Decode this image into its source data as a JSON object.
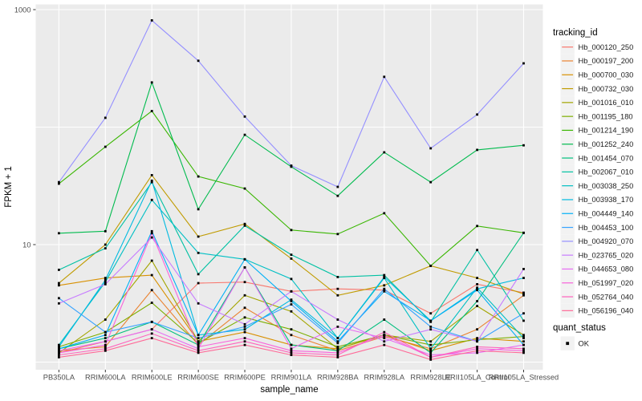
{
  "chart_data": {
    "type": "line",
    "title": "",
    "xlabel": "sample_name",
    "ylabel": "FPKM + 1",
    "y_scale": "log10",
    "ylim": [
      1,
      1100
    ],
    "y_tick_labels": [
      "1000",
      "10"
    ],
    "y_tick_values": [
      1000,
      10
    ],
    "y_gridline_values": [
      1,
      10,
      100,
      1000
    ],
    "grid": true,
    "legend_position": "right",
    "x_categories": [
      "PB350LA",
      "RRIM600LA",
      "RRIM600LE",
      "RRIM600SE",
      "RRIM600PE",
      "RRIM901LA",
      "RRIM928BA",
      "RRIM928LA",
      "RRIM928LE",
      "RRII105LA_Control",
      "RRII105LA_Stressed"
    ],
    "legend_title": "tracking_id",
    "series": [
      {
        "name": "Hb_000120_250",
        "color": "#F8766D",
        "values": [
          1.2,
          1.5,
          1.9,
          4.7,
          4.8,
          4.0,
          4.2,
          4.1,
          2.6,
          4.6,
          3.9
        ]
      },
      {
        "name": "Hb_000197_200",
        "color": "#EA8331",
        "values": [
          1.25,
          1.35,
          4.1,
          1.4,
          2.9,
          1.7,
          1.25,
          1.65,
          1.3,
          1.9,
          3.7
        ]
      },
      {
        "name": "Hb_000700_030",
        "color": "#D89000",
        "values": [
          4.5,
          5.2,
          5.5,
          1.5,
          1.8,
          1.4,
          1.3,
          1.7,
          1.25,
          1.6,
          1.5
        ]
      },
      {
        "name": "Hb_000732_030",
        "color": "#C09B00",
        "values": [
          4.7,
          10,
          39,
          11.7,
          15,
          7.6,
          3.7,
          4.5,
          6.6,
          5.2,
          3.8
        ]
      },
      {
        "name": "Hb_001016_010",
        "color": "#A3A500",
        "values": [
          1.2,
          2.3,
          7.3,
          1.5,
          3.7,
          2.7,
          1.3,
          1.7,
          1.5,
          3.0,
          1.7
        ]
      },
      {
        "name": "Hb_001195_180",
        "color": "#7CAE00",
        "values": [
          1.35,
          1.8,
          3.2,
          1.45,
          2.4,
          1.9,
          1.35,
          1.7,
          1.4,
          1.55,
          1.65
        ]
      },
      {
        "name": "Hb_001214_190",
        "color": "#39B600",
        "values": [
          33,
          68,
          137,
          38,
          30,
          13.3,
          12.3,
          18.5,
          6.6,
          14.4,
          12.6
        ]
      },
      {
        "name": "Hb_001252_240",
        "color": "#00BB4E",
        "values": [
          12.5,
          13,
          240,
          20,
          86,
          46,
          26,
          61,
          34,
          64,
          70
        ]
      },
      {
        "name": "Hb_001454_070",
        "color": "#00BF7D",
        "values": [
          1.3,
          1.6,
          2.2,
          1.4,
          6.4,
          1.4,
          1.25,
          2.3,
          1.2,
          3.3,
          12.6
        ]
      },
      {
        "name": "Hb_002067_010",
        "color": "#00C1A3",
        "values": [
          6.1,
          9.3,
          34,
          5.6,
          14.5,
          8.2,
          5.3,
          5.5,
          2.2,
          9.0,
          2.25
        ]
      },
      {
        "name": "Hb_003038_250",
        "color": "#00BFC4",
        "values": [
          1.4,
          4.8,
          24,
          8.5,
          7.5,
          5.1,
          1.6,
          5.2,
          1.3,
          4.3,
          1.6
        ]
      },
      {
        "name": "Hb_003938_170",
        "color": "#00BAE0",
        "values": [
          1.35,
          5.0,
          35,
          1.7,
          1.9,
          3.4,
          1.6,
          5.3,
          2.25,
          4.2,
          5.2
        ]
      },
      {
        "name": "Hb_004449_140",
        "color": "#00B0F6",
        "values": [
          1.3,
          1.7,
          13,
          1.7,
          7.5,
          3.3,
          1.5,
          4.0,
          2.25,
          4.1,
          1.4
        ]
      },
      {
        "name": "Hb_004453_100",
        "color": "#35A2FF",
        "values": [
          3.5,
          1.8,
          2.2,
          1.6,
          2.0,
          3.1,
          1.45,
          4.2,
          2.0,
          1.5,
          2.6
        ]
      },
      {
        "name": "Hb_004920_070",
        "color": "#9590FF",
        "values": [
          34,
          120,
          810,
          367,
          123,
          47,
          31,
          268,
          66,
          128,
          349
        ]
      },
      {
        "name": "Hb_023765_020",
        "color": "#C77CFF",
        "values": [
          3.16,
          4.6,
          11.5,
          3.16,
          2.1,
          4.0,
          2.3,
          1.5,
          1.9,
          1.5,
          6.2
        ]
      },
      {
        "name": "Hb_044653_080",
        "color": "#E76BF3",
        "values": [
          1.25,
          1.5,
          1.9,
          1.3,
          6.4,
          1.3,
          2.0,
          1.6,
          1.15,
          1.2,
          1.4
        ]
      },
      {
        "name": "Hb_051997_020",
        "color": "#FA62DB",
        "values": [
          1.2,
          1.4,
          12.5,
          1.35,
          1.6,
          1.25,
          1.2,
          1.7,
          1.1,
          1.3,
          1.25
        ]
      },
      {
        "name": "Hb_052764_040",
        "color": "#FF62BC",
        "values": [
          1.15,
          1.3,
          1.75,
          1.25,
          1.5,
          1.2,
          1.15,
          1.8,
          1.1,
          1.35,
          1.3
        ]
      },
      {
        "name": "Hb_056196_040",
        "color": "#FF6A98",
        "values": [
          1.1,
          1.25,
          1.6,
          1.2,
          1.4,
          1.15,
          1.1,
          1.4,
          1.05,
          1.25,
          1.2
        ]
      }
    ],
    "legend2": {
      "title": "quant_status",
      "items": [
        {
          "label": "OK",
          "symbol": "black-square"
        }
      ]
    }
  },
  "style": {
    "panel_bg": "#EBEBEB",
    "gridline": "#FFFFFF",
    "tick_color": "#333333",
    "point_color": "#000000",
    "legend_key_bg": "#F2F2F2"
  }
}
